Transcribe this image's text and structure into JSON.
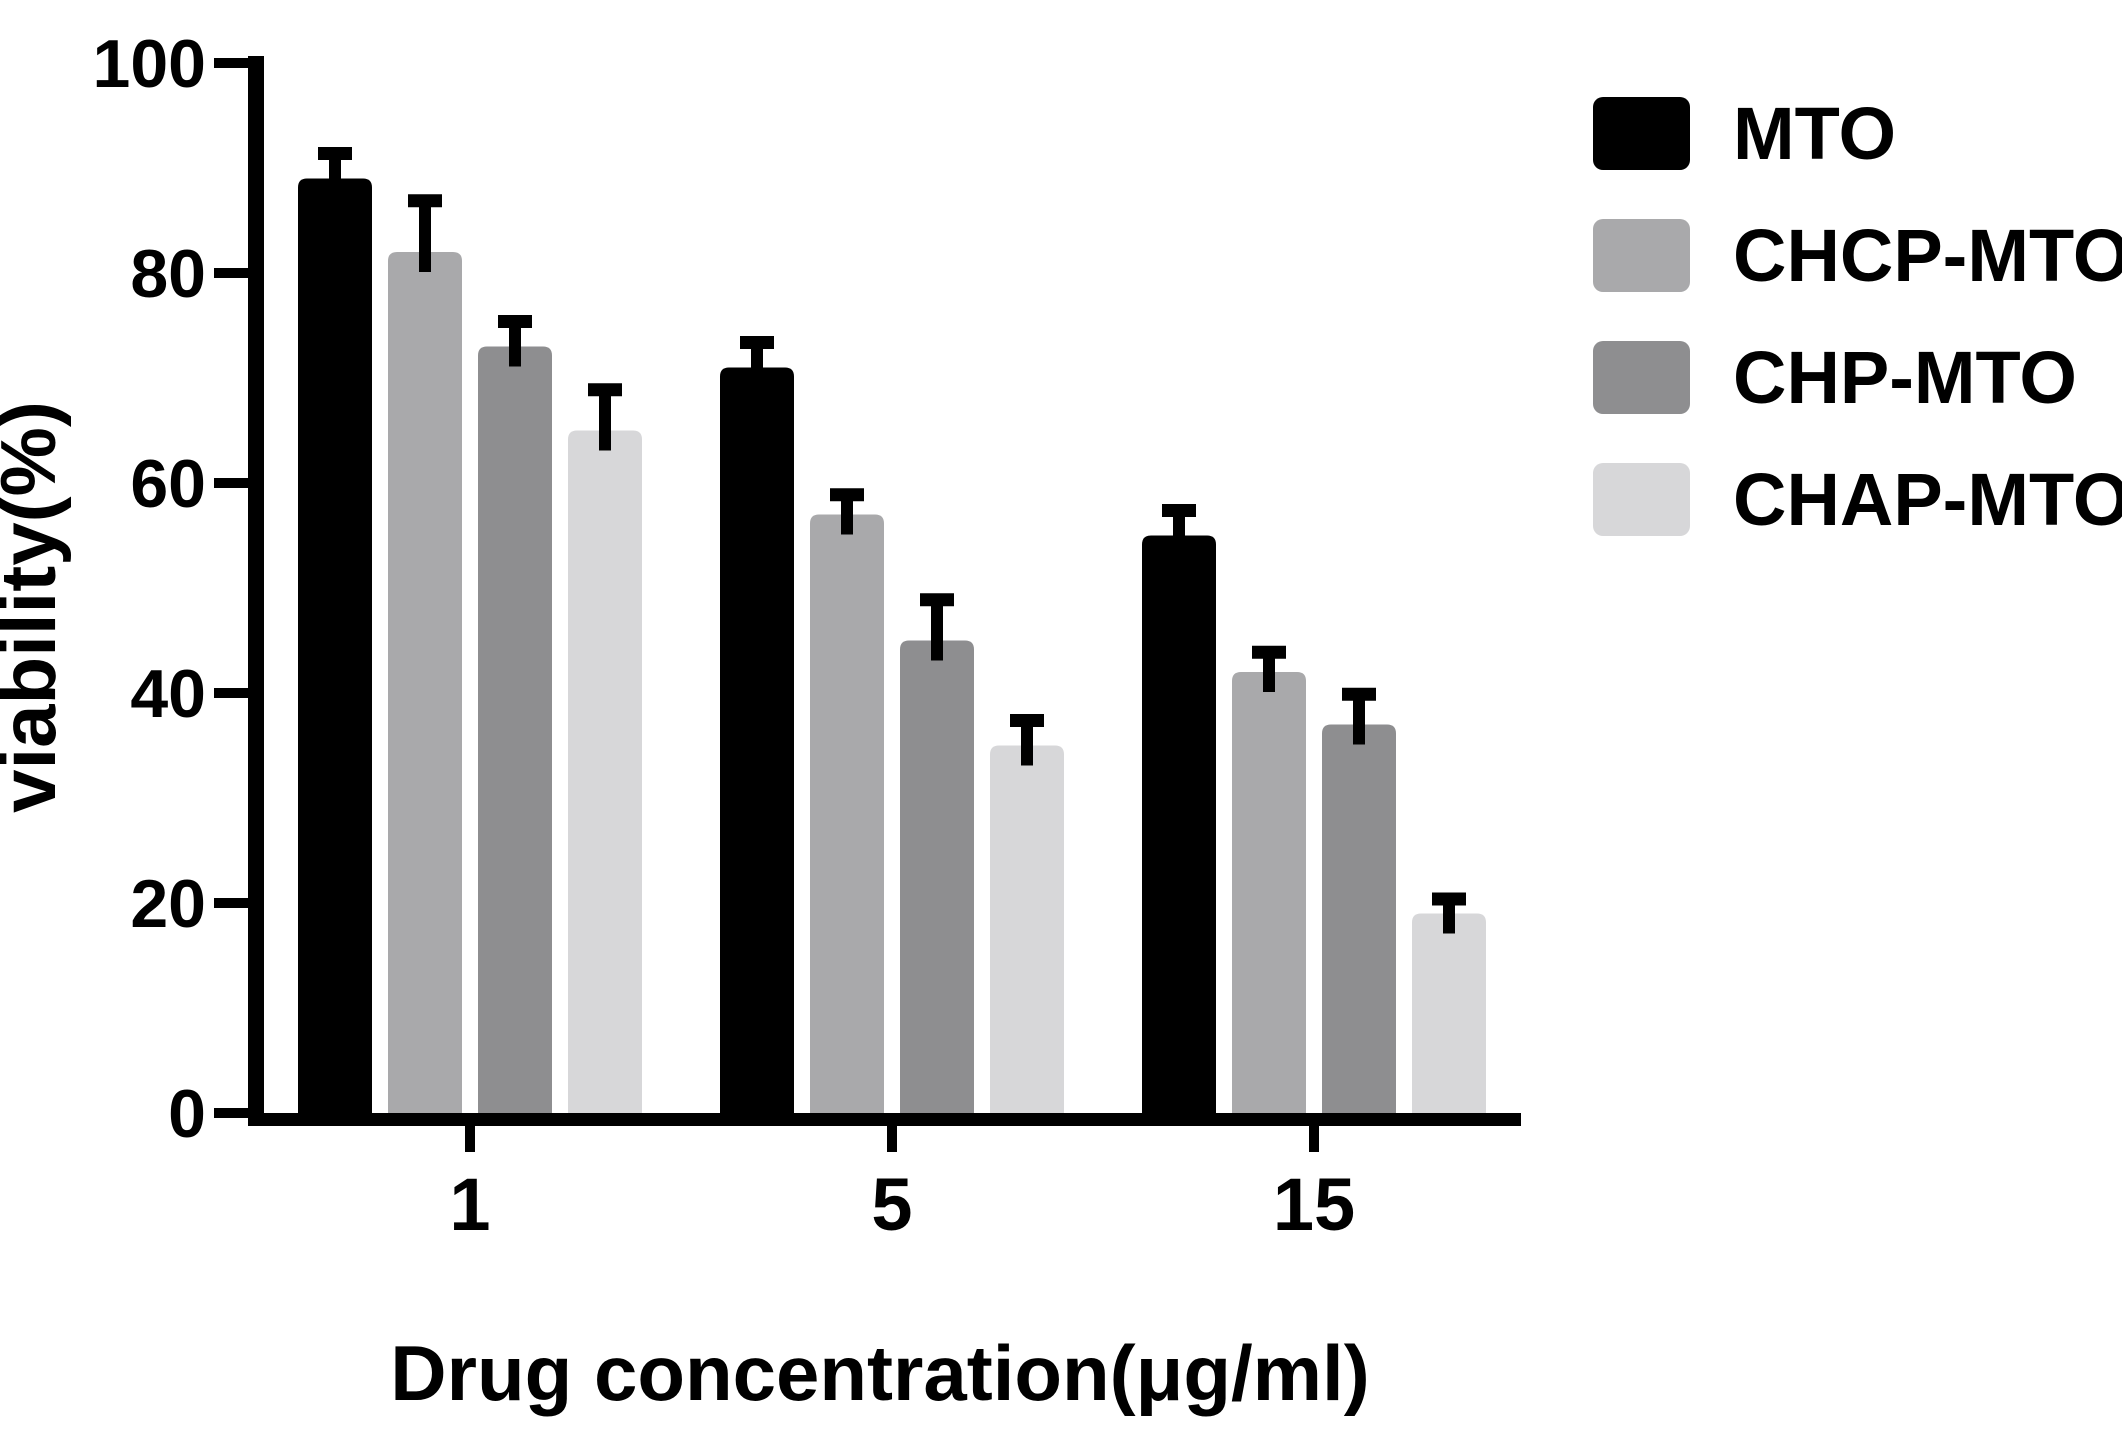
{
  "chart_data": {
    "type": "bar",
    "title": "",
    "xlabel": "Drug concentration(μg/ml)",
    "ylabel": "viability(%)",
    "ylim": [
      0,
      100
    ],
    "yticks": [
      0,
      20,
      40,
      60,
      80,
      100
    ],
    "categories": [
      "1",
      "5",
      "15"
    ],
    "series": [
      {
        "name": "MTO",
        "color": "#000000",
        "values": [
          89,
          71,
          55
        ],
        "errors": [
          3,
          3,
          3
        ]
      },
      {
        "name": "CHCP-MTO",
        "color": "#a9a9ab",
        "values": [
          82,
          57,
          42
        ],
        "errors": [
          5.5,
          2.5,
          2.5
        ]
      },
      {
        "name": "CHP-MTO",
        "color": "#8e8e90",
        "values": [
          73,
          45,
          37
        ],
        "errors": [
          3,
          4.5,
          3.5
        ]
      },
      {
        "name": "CHAP-MTO",
        "color": "#d7d7d9",
        "values": [
          65,
          35,
          19
        ],
        "errors": [
          4.5,
          3,
          2
        ]
      }
    ],
    "error_bars": "upper",
    "grid": false,
    "legend_position": "top-right",
    "axis_color": "#000000"
  }
}
